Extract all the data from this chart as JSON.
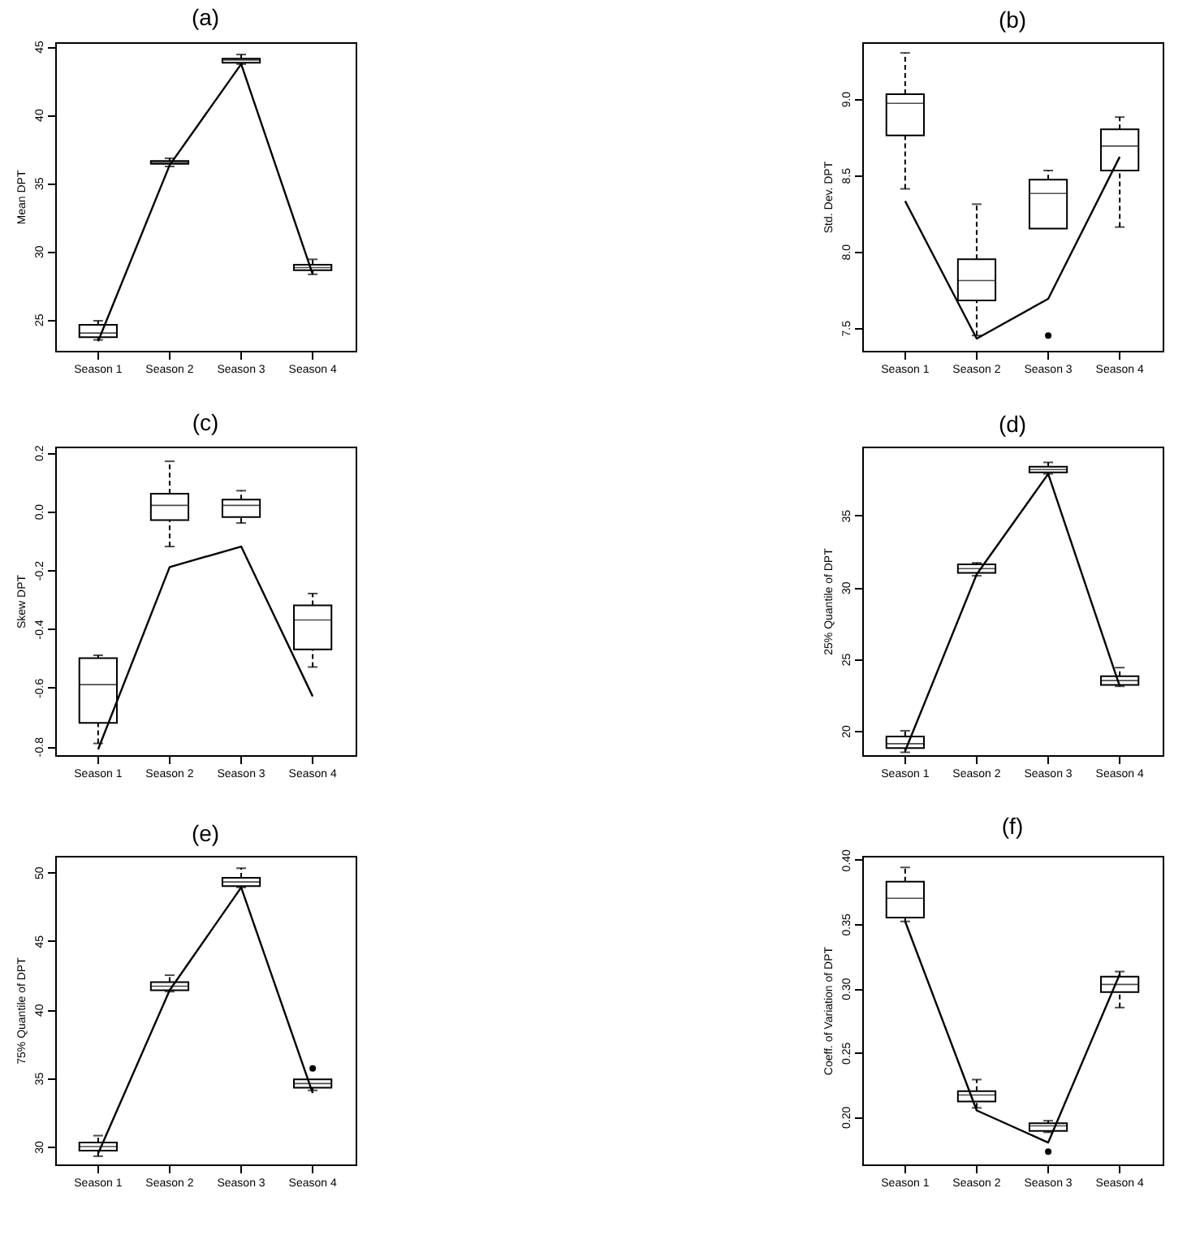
{
  "chart_data": [
    {
      "type": "box",
      "title": "(a)",
      "ylabel": "Mean DPT",
      "categories": [
        "Season 1",
        "Season 2",
        "Season 3",
        "Season 4"
      ],
      "ylim": [
        22.7,
        45.3
      ],
      "yticks": [
        25,
        30,
        35,
        40,
        45
      ],
      "series": [
        {
          "type": "box",
          "color": "#000000",
          "boxes": [
            {
              "low": 23.5,
              "q1": 23.7,
              "median": 24.0,
              "q3": 24.6,
              "high": 24.9
            },
            {
              "low": 36.2,
              "q1": 36.4,
              "median": 36.5,
              "q3": 36.6,
              "high": 36.8
            },
            {
              "low": 43.7,
              "q1": 43.8,
              "median": 44.0,
              "q3": 44.1,
              "high": 44.4
            },
            {
              "low": 28.3,
              "q1": 28.6,
              "median": 28.8,
              "q3": 29.0,
              "high": 29.4
            }
          ]
        },
        {
          "type": "line",
          "color": "#000000",
          "values": [
            23.4,
            36.3,
            43.7,
            28.3
          ]
        }
      ]
    },
    {
      "type": "box",
      "title": "(b)",
      "ylabel": "Std. Dev. DPT",
      "categories": [
        "Season 1",
        "Season 2",
        "Season 3",
        "Season 4"
      ],
      "ylim": [
        7.35,
        9.37
      ],
      "yticks": [
        7.5,
        {
          "value": 8,
          "label": "8.0"
        },
        8.5,
        {
          "value": 9,
          "label": "9.0"
        }
      ],
      "series": [
        {
          "type": "box",
          "color": "#000000",
          "boxes": [
            {
              "low": 8.41,
              "q1": 8.76,
              "median": 8.97,
              "q3": 9.03,
              "high": 9.3
            },
            {
              "low": 7.45,
              "q1": 7.68,
              "median": 7.81,
              "q3": 7.95,
              "high": 8.31
            },
            {
              "low": 8.15,
              "q1": 8.15,
              "median": 8.38,
              "q3": 8.47,
              "high": 8.53,
              "outliers": [
                7.45
              ]
            },
            {
              "low": 8.16,
              "q1": 8.53,
              "median": 8.69,
              "q3": 8.8,
              "high": 8.88
            }
          ]
        },
        {
          "type": "line",
          "color": "#000000",
          "values": [
            8.33,
            7.43,
            7.69,
            8.62
          ]
        }
      ]
    },
    {
      "type": "box",
      "title": "(c)",
      "ylabel": "Skew DPT",
      "categories": [
        "Season 1",
        "Season 2",
        "Season 3",
        "Season 4"
      ],
      "ylim": [
        -0.83,
        0.22
      ],
      "yticks": [
        -0.8,
        -0.6,
        -0.4,
        -0.2,
        {
          "value": 0,
          "label": "0.0"
        },
        0.2
      ],
      "series": [
        {
          "type": "box",
          "color": "#000000",
          "boxes": [
            {
              "low": -0.79,
              "q1": -0.72,
              "median": -0.59,
              "q3": -0.5,
              "high": -0.49
            },
            {
              "low": -0.12,
              "q1": -0.03,
              "median": 0.02,
              "q3": 0.06,
              "high": 0.17
            },
            {
              "low": -0.04,
              "q1": -0.02,
              "median": 0.02,
              "q3": 0.04,
              "high": 0.07
            },
            {
              "low": -0.53,
              "q1": -0.47,
              "median": -0.37,
              "q3": -0.32,
              "high": -0.28
            }
          ]
        },
        {
          "type": "line",
          "color": "#000000",
          "values": [
            -0.81,
            -0.19,
            -0.12,
            -0.63
          ]
        }
      ]
    },
    {
      "type": "box",
      "title": "(d)",
      "ylabel": "25% Quantile of DPT",
      "categories": [
        "Season 1",
        "Season 2",
        "Season 3",
        "Season 4"
      ],
      "ylim": [
        18.3,
        39.8
      ],
      "yticks": [
        20,
        25,
        30,
        35
      ],
      "series": [
        {
          "type": "box",
          "color": "#000000",
          "boxes": [
            {
              "low": 18.5,
              "q1": 18.8,
              "median": 19.1,
              "q3": 19.6,
              "high": 20.0
            },
            {
              "low": 30.8,
              "q1": 31.0,
              "median": 31.3,
              "q3": 31.6,
              "high": 31.7
            },
            {
              "low": 37.9,
              "q1": 38.0,
              "median": 38.2,
              "q3": 38.4,
              "high": 38.7
            },
            {
              "low": 23.1,
              "q1": 23.2,
              "median": 23.5,
              "q3": 23.8,
              "high": 24.4
            }
          ]
        },
        {
          "type": "line",
          "color": "#000000",
          "values": [
            18.6,
            30.9,
            37.9,
            23.1
          ]
        }
      ]
    },
    {
      "type": "box",
      "title": "(e)",
      "ylabel": "75% Quantile of DPT",
      "categories": [
        "Season 1",
        "Season 2",
        "Season 3",
        "Season 4"
      ],
      "ylim": [
        28.7,
        51.2
      ],
      "yticks": [
        30,
        35,
        40,
        45,
        50
      ],
      "series": [
        {
          "type": "box",
          "color": "#000000",
          "boxes": [
            {
              "low": 29.3,
              "q1": 29.7,
              "median": 30.0,
              "q3": 30.3,
              "high": 30.8
            },
            {
              "low": 41.3,
              "q1": 41.4,
              "median": 41.7,
              "q3": 42.0,
              "high": 42.5
            },
            {
              "low": 48.9,
              "q1": 49.0,
              "median": 49.3,
              "q3": 49.6,
              "high": 50.3
            },
            {
              "low": 34.1,
              "q1": 34.3,
              "median": 34.6,
              "q3": 34.9,
              "high": 34.9,
              "outliers": [
                35.7
              ]
            }
          ]
        },
        {
          "type": "line",
          "color": "#000000",
          "values": [
            29.5,
            41.4,
            48.9,
            33.9
          ]
        }
      ]
    },
    {
      "type": "box",
      "title": "(f)",
      "ylabel": "Coeff. of Variation of DPT",
      "categories": [
        "Season 1",
        "Season 2",
        "Season 3",
        "Season 4"
      ],
      "ylim": [
        0.163,
        0.403
      ],
      "yticks": [
        {
          "value": 0.2,
          "label": "0.20"
        },
        0.25,
        {
          "value": 0.3,
          "label": "0.30"
        },
        0.35,
        {
          "value": 0.4,
          "label": "0.40"
        }
      ],
      "series": [
        {
          "type": "box",
          "color": "#000000",
          "boxes": [
            {
              "low": 0.352,
              "q1": 0.355,
              "median": 0.37,
              "q3": 0.383,
              "high": 0.394
            },
            {
              "low": 0.207,
              "q1": 0.212,
              "median": 0.217,
              "q3": 0.22,
              "high": 0.229
            },
            {
              "low": 0.188,
              "q1": 0.189,
              "median": 0.193,
              "q3": 0.195,
              "high": 0.197,
              "outliers": [
                0.173
              ]
            },
            {
              "low": 0.285,
              "q1": 0.297,
              "median": 0.303,
              "q3": 0.309,
              "high": 0.313
            }
          ]
        },
        {
          "type": "line",
          "color": "#000000",
          "values": [
            0.352,
            0.205,
            0.18,
            0.311
          ]
        }
      ]
    }
  ]
}
